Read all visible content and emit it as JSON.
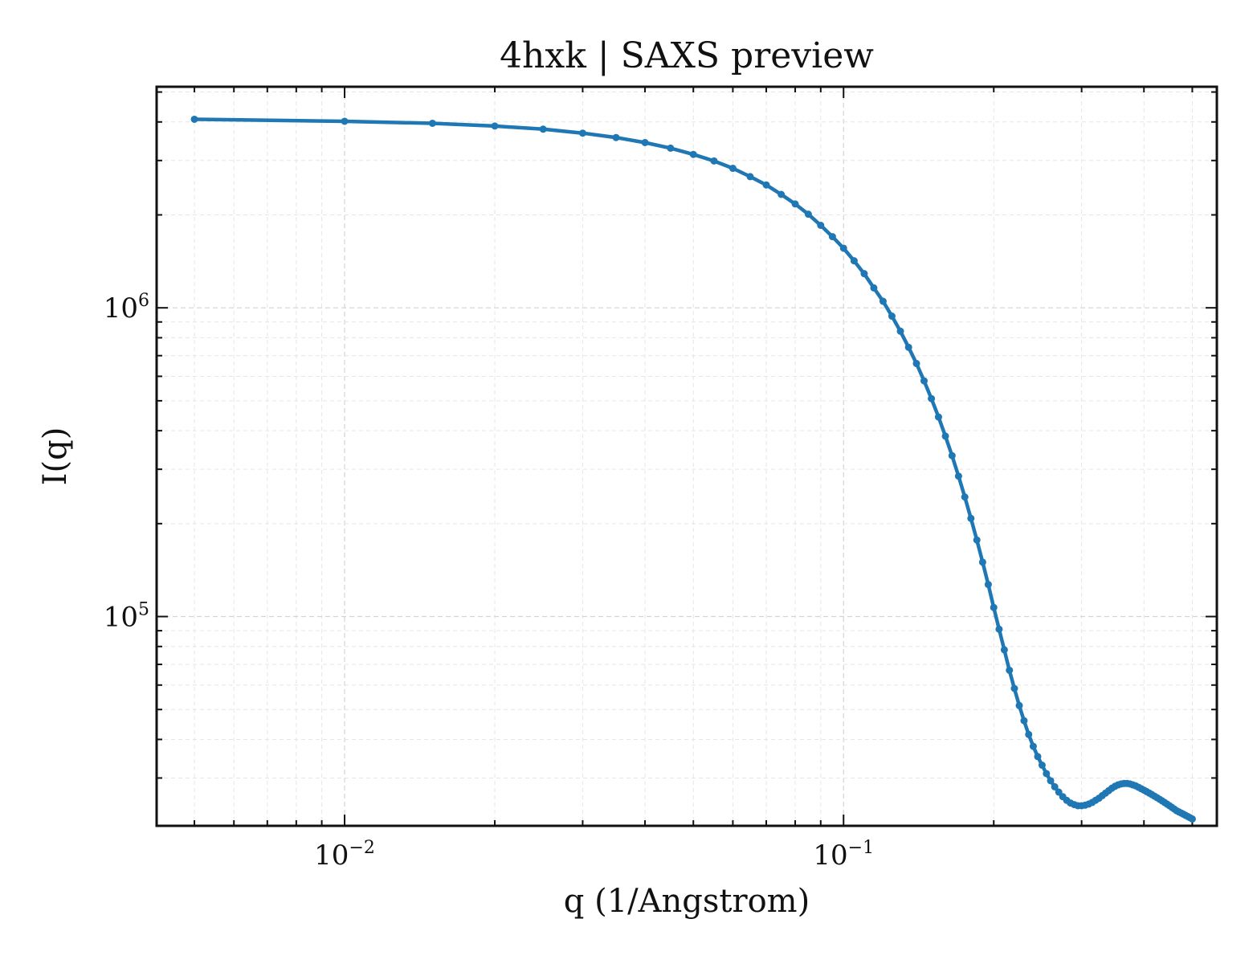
{
  "chart_data": {
    "type": "line",
    "title": "4hxk | SAXS preview",
    "xlabel": "q (1/Angstrom)",
    "ylabel": "I(q)",
    "xscale": "log",
    "yscale": "log",
    "xlim": [
      0.0042,
      0.56
    ],
    "ylim": [
      21000,
      5200000
    ],
    "grid": true,
    "line_color": "#1f77b4",
    "x_ticks": [
      {
        "value": 0.01,
        "base": "10",
        "exp": "−2"
      },
      {
        "value": 0.1,
        "base": "10",
        "exp": "−1"
      }
    ],
    "y_ticks": [
      {
        "value": 100000,
        "base": "10",
        "exp": "5"
      },
      {
        "value": 1000000,
        "base": "10",
        "exp": "6"
      }
    ],
    "series": [
      {
        "x": [
          0.005,
          0.01,
          0.015,
          0.02,
          0.025,
          0.03,
          0.035,
          0.04,
          0.045,
          0.05,
          0.055,
          0.06,
          0.065,
          0.07,
          0.075,
          0.08,
          0.085,
          0.09,
          0.095,
          0.1,
          0.105,
          0.11,
          0.115,
          0.12,
          0.125,
          0.13,
          0.135,
          0.14,
          0.145,
          0.15,
          0.155,
          0.16,
          0.165,
          0.17,
          0.175,
          0.18,
          0.185,
          0.19,
          0.195,
          0.2,
          0.205,
          0.21,
          0.215,
          0.22,
          0.225,
          0.23,
          0.235,
          0.24,
          0.245,
          0.25,
          0.255,
          0.26,
          0.265,
          0.27,
          0.275,
          0.28,
          0.285,
          0.29,
          0.295,
          0.3,
          0.305,
          0.31,
          0.315,
          0.32,
          0.325,
          0.33,
          0.335,
          0.34,
          0.345,
          0.35,
          0.355,
          0.36,
          0.365,
          0.37,
          0.375,
          0.38,
          0.385,
          0.39,
          0.395,
          0.4,
          0.405,
          0.41,
          0.415,
          0.42,
          0.425,
          0.43,
          0.435,
          0.44,
          0.445,
          0.45,
          0.455,
          0.46,
          0.465,
          0.47,
          0.475,
          0.48,
          0.485,
          0.49,
          0.495,
          0.5
        ],
        "y": [
          4080000,
          4020000,
          3960000,
          3880000,
          3790000,
          3680000,
          3560000,
          3430000,
          3290000,
          3140000,
          2990000,
          2830000,
          2660000,
          2500000,
          2330000,
          2170000,
          2010000,
          1850000,
          1700000,
          1560000,
          1420000,
          1290000,
          1160000,
          1050000,
          940000,
          840000,
          745000,
          660000,
          580000,
          508000,
          443000,
          384000,
          332000,
          285000,
          244000,
          208000,
          177000,
          150000,
          127000,
          107000,
          91000,
          78000,
          67000,
          58500,
          51500,
          46000,
          41500,
          38000,
          35200,
          33000,
          31000,
          29400,
          28100,
          27000,
          26100,
          25400,
          24900,
          24600,
          24400,
          24400,
          24500,
          24700,
          25000,
          25400,
          25800,
          26300,
          26800,
          27300,
          27800,
          28200,
          28500,
          28700,
          28800,
          28800,
          28700,
          28500,
          28300,
          28000,
          27700,
          27400,
          27100,
          26800,
          26500,
          26200,
          25900,
          25600,
          25300,
          25000,
          24700,
          24400,
          24100,
          23800,
          23500,
          23300,
          23100,
          22900,
          22700,
          22500,
          22300,
          22100
        ]
      }
    ]
  }
}
